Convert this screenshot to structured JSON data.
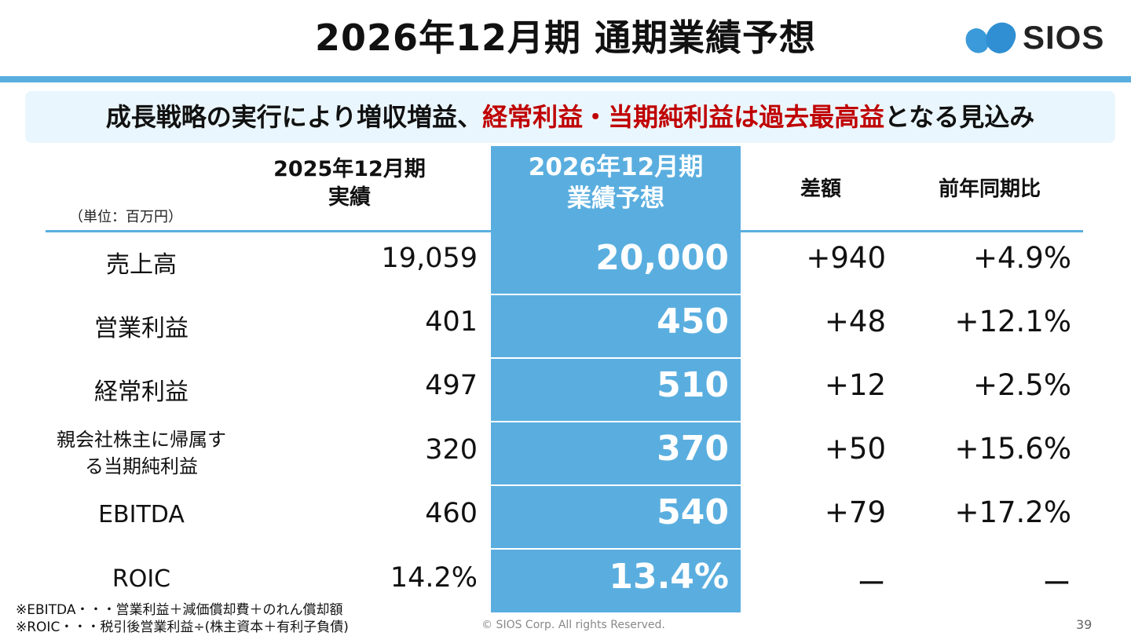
{
  "title": "2026年12月期 通期業績予想",
  "logo": {
    "text": "SIOS"
  },
  "banner": {
    "part1": "成長戦略の実行により増収増益、",
    "highlight": "経常利益・当期純利益は過去最高益",
    "part2": "となる見込み",
    "highlight_color": "#c00000"
  },
  "table": {
    "unit": "（単位：百万円）",
    "headers": {
      "prev_line1": "2025年12月期",
      "prev_line2": "実績",
      "forecast_line1": "2026年12月期",
      "forecast_line2": "業績予想",
      "diff": "差額",
      "yoy": "前年同期比"
    },
    "rows": [
      {
        "label": "売上高",
        "prev": "19,059",
        "forecast": "20,000",
        "diff": "+940",
        "yoy": "+4.9%"
      },
      {
        "label": "営業利益",
        "prev": "401",
        "forecast": "450",
        "diff": "+48",
        "yoy": "+12.1%"
      },
      {
        "label": "経常利益",
        "prev": "497",
        "forecast": "510",
        "diff": "+12",
        "yoy": "+2.5%"
      },
      {
        "label_line1": "親会社株主に帰属す",
        "label_line2": "る当期純利益",
        "prev": "320",
        "forecast": "370",
        "diff": "+50",
        "yoy": "+15.6%"
      },
      {
        "label": "EBITDA",
        "prev": "460",
        "forecast": "540",
        "diff": "+79",
        "yoy": "+17.2%"
      },
      {
        "label": "ROIC",
        "prev": "14.2%",
        "forecast": "13.4%",
        "diff": "ー",
        "yoy": "ー"
      }
    ],
    "highlight_color": "#5aaedf"
  },
  "notes": [
    "※EBITDA・・・営業利益＋減価償却費＋のれん償却額",
    "※ROIC・・・税引後営業利益÷(株主資本＋有利子負債)"
  ],
  "footer": {
    "copyright": "© SIOS Corp. All rights Reserved.",
    "page": "39"
  }
}
